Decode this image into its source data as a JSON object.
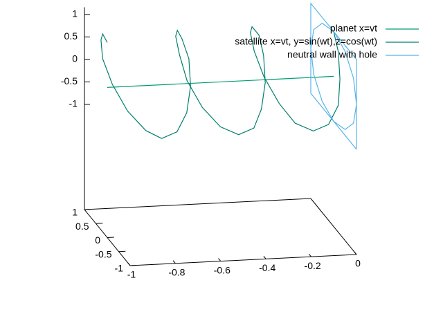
{
  "chart_data": {
    "type": "line3d",
    "xlim": [
      -1,
      0
    ],
    "ylim": [
      -1,
      1
    ],
    "zlim": [
      -1,
      1
    ],
    "xticks": [
      -1,
      -0.8,
      -0.6,
      -0.4,
      -0.2,
      0
    ],
    "yticks": [
      -1,
      -0.5,
      0,
      0.5,
      1
    ],
    "zticks": [
      -1,
      -0.5,
      0,
      0.5,
      1
    ],
    "legend": "top-right",
    "series": [
      {
        "name": "planet x=vt",
        "color": "#009e73",
        "x": [
          -1,
          0
        ],
        "y": [
          0,
          0
        ],
        "z": [
          0,
          0
        ]
      },
      {
        "name": "satellite x=vt, y=sin(wt),z=cos(wt)",
        "color": "#007f6e",
        "x": [
          -1,
          -0.97,
          -0.94,
          -0.92,
          -0.89,
          -0.86,
          -0.83,
          -0.81,
          -0.78,
          -0.75,
          -0.72,
          -0.69,
          -0.67,
          -0.64,
          -0.61,
          -0.58,
          -0.56,
          -0.53,
          -0.5,
          -0.47,
          -0.44,
          -0.42,
          -0.39,
          -0.36,
          -0.33,
          -0.31,
          -0.28,
          -0.25,
          -0.22,
          -0.19,
          -0.17,
          -0.14,
          -0.11,
          -0.08,
          -0.06,
          -0.03,
          0
        ],
        "y": [
          0,
          0.5,
          0.87,
          1,
          0.87,
          0.5,
          0,
          -0.5,
          -0.87,
          -1,
          -0.87,
          -0.5,
          0,
          0.5,
          0.87,
          1,
          0.87,
          0.5,
          0,
          -0.5,
          -0.87,
          -1,
          -0.87,
          -0.5,
          0,
          0.5,
          0.87,
          1,
          0.87,
          0.5,
          0,
          -0.5,
          -0.87,
          -1,
          -0.87,
          -0.5,
          0
        ],
        "z": [
          1,
          0.87,
          0.5,
          0,
          -0.5,
          -0.87,
          -1,
          -0.87,
          -0.5,
          0,
          0.5,
          0.87,
          1,
          0.87,
          0.5,
          0,
          -0.5,
          -0.87,
          -1,
          -0.87,
          -0.5,
          0,
          0.5,
          0.87,
          1,
          0.87,
          0.5,
          0,
          -0.5,
          -0.87,
          -1,
          -0.87,
          -0.5,
          0,
          0.5,
          0.87,
          1
        ]
      },
      {
        "name": "neutral wall with hole",
        "color": "#56b4e9",
        "x": [
          0,
          0,
          0,
          0,
          0,
          null,
          0,
          0,
          0,
          0,
          0,
          0,
          0,
          0,
          0,
          0,
          0,
          0,
          0
        ],
        "y": [
          -1,
          1,
          1,
          -1,
          -1,
          null,
          0,
          0.5,
          0.87,
          1,
          0.87,
          0.5,
          0,
          -0.5,
          -0.87,
          -1,
          -0.87,
          -0.5,
          0
        ],
        "z": [
          -1,
          -1,
          1,
          1,
          -1,
          null,
          1,
          0.87,
          0.5,
          0,
          -0.5,
          -0.87,
          -1,
          -0.87,
          -0.5,
          0,
          0.5,
          0.87,
          1
        ]
      }
    ]
  }
}
